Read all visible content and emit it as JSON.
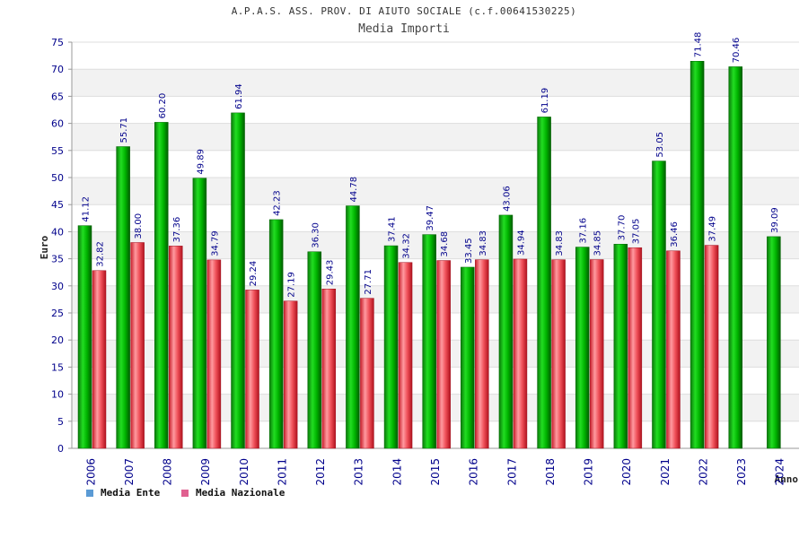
{
  "title": "A.P.A.S. ASS. PROV. DI AIUTO SOCIALE (c.f.00641530225)",
  "subtitle": "Media Importi",
  "chart_data": {
    "type": "bar",
    "title": "Media Importi",
    "xlabel": "Anno",
    "ylabel": "Euro",
    "ylim": [
      0,
      75
    ],
    "yticks": [
      0,
      5,
      10,
      15,
      20,
      25,
      30,
      35,
      40,
      45,
      50,
      55,
      60,
      65,
      70,
      75
    ],
    "categories": [
      "2006",
      "2007",
      "2008",
      "2009",
      "2010",
      "2011",
      "2012",
      "2013",
      "2014",
      "2015",
      "2016",
      "2017",
      "2018",
      "2019",
      "2020",
      "2021",
      "2022",
      "2023",
      "2024"
    ],
    "series": [
      {
        "name": "Media Ente",
        "color": "#00aa00",
        "legend_color": "#5b9bd5",
        "values": [
          41.12,
          55.71,
          60.2,
          49.89,
          61.94,
          42.23,
          36.3,
          44.78,
          37.41,
          39.47,
          33.45,
          43.06,
          61.19,
          37.16,
          37.7,
          53.05,
          71.48,
          70.46,
          39.09
        ],
        "labels": [
          "41.12",
          "55.71",
          "60.20",
          "49.89",
          "61.94",
          "42.23",
          "36.30",
          "44.78",
          "37.41",
          "39.47",
          "33.45",
          "43.06",
          "61.19",
          "37.16",
          "37.70",
          "53.05",
          "71.48",
          "70.46",
          "39.09"
        ]
      },
      {
        "name": "Media Nazionale",
        "color": "#e8404a",
        "legend_color": "#e06090",
        "values": [
          32.82,
          38.0,
          37.36,
          34.79,
          29.24,
          27.19,
          29.43,
          27.71,
          34.32,
          34.68,
          34.83,
          34.94,
          34.83,
          34.85,
          37.05,
          36.46,
          37.49,
          null,
          null
        ],
        "labels": [
          "32.82",
          "38.00",
          "37.36",
          "34.79",
          "29.24",
          "27.19",
          "29.43",
          "27.71",
          "34.32",
          "34.68",
          "34.83",
          "34.94",
          "34.83",
          "34.85",
          "37.05",
          "36.46",
          "37.49",
          "",
          ""
        ]
      }
    ],
    "legend_position": "bottom-left",
    "grid": true
  }
}
